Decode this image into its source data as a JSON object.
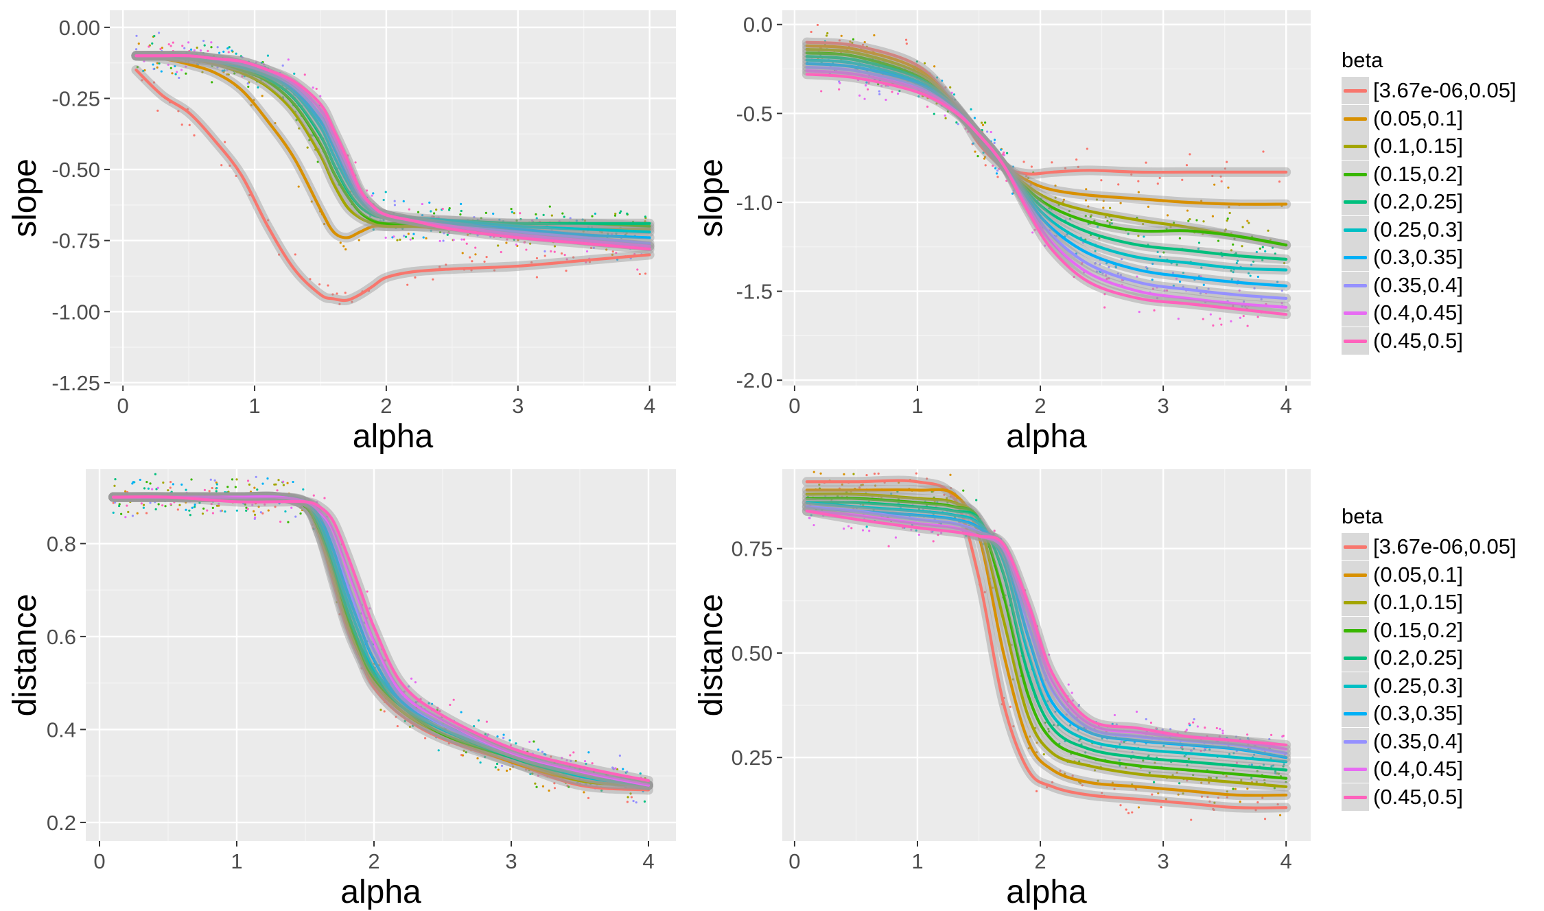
{
  "legend": {
    "title": "beta",
    "labels": [
      "[3.67e-06,0.05]",
      "(0.05,0.1]",
      "(0.1,0.15]",
      "(0.15,0.2]",
      "(0.2,0.25]",
      "(0.25,0.3]",
      "(0.3,0.35]",
      "(0.35,0.4]",
      "(0.4,0.45]",
      "(0.45,0.5]"
    ],
    "colors": [
      "#F8766D",
      "#D89000",
      "#A3A500",
      "#39B600",
      "#00BF7D",
      "#00BFC4",
      "#00B0F6",
      "#9590FF",
      "#E76BF3",
      "#FF62BC"
    ]
  },
  "chart_data": [
    {
      "type": "line",
      "xlabel": "alpha",
      "ylabel": "slope",
      "xlim": [
        -0.1,
        4.2
      ],
      "ylim": [
        -1.26,
        0.06
      ],
      "x_ticks": [
        0,
        1,
        2,
        3,
        4
      ],
      "y_ticks": [
        0.0,
        -0.25,
        -0.5,
        -0.75,
        -1.0,
        -1.25
      ],
      "y_tick_labels": [
        "0.00",
        "-0.25",
        "-0.50",
        "-0.75",
        "-1.00",
        "-1.25"
      ],
      "grid": true,
      "x": [
        0.1,
        0.3,
        0.5,
        0.7,
        0.9,
        1.1,
        1.3,
        1.5,
        1.6,
        1.7,
        1.8,
        1.9,
        2.0,
        2.2,
        2.5,
        3.0,
        3.5,
        4.0
      ],
      "series": [
        {
          "values": [
            -0.15,
            -0.24,
            -0.3,
            -0.4,
            -0.52,
            -0.7,
            -0.85,
            -0.94,
            -0.955,
            -0.96,
            -0.94,
            -0.91,
            -0.88,
            -0.86,
            -0.85,
            -0.84,
            -0.82,
            -0.8
          ]
        },
        {
          "values": [
            -0.1,
            -0.11,
            -0.13,
            -0.16,
            -0.22,
            -0.33,
            -0.46,
            -0.64,
            -0.72,
            -0.74,
            -0.72,
            -0.7,
            -0.7,
            -0.7,
            -0.71,
            -0.72,
            -0.75,
            -0.77
          ]
        },
        {
          "values": [
            -0.1,
            -0.1,
            -0.11,
            -0.13,
            -0.16,
            -0.21,
            -0.3,
            -0.45,
            -0.55,
            -0.63,
            -0.67,
            -0.69,
            -0.7,
            -0.7,
            -0.7,
            -0.7,
            -0.71,
            -0.71
          ]
        },
        {
          "values": [
            -0.1,
            -0.1,
            -0.11,
            -0.12,
            -0.15,
            -0.19,
            -0.27,
            -0.41,
            -0.51,
            -0.59,
            -0.65,
            -0.68,
            -0.69,
            -0.69,
            -0.69,
            -0.69,
            -0.69,
            -0.7
          ]
        },
        {
          "values": [
            -0.1,
            -0.1,
            -0.11,
            -0.12,
            -0.14,
            -0.18,
            -0.25,
            -0.38,
            -0.48,
            -0.57,
            -0.63,
            -0.66,
            -0.67,
            -0.68,
            -0.68,
            -0.69,
            -0.69,
            -0.69
          ]
        },
        {
          "values": [
            -0.1,
            -0.1,
            -0.1,
            -0.12,
            -0.14,
            -0.17,
            -0.23,
            -0.35,
            -0.45,
            -0.54,
            -0.61,
            -0.65,
            -0.66,
            -0.67,
            -0.68,
            -0.7,
            -0.71,
            -0.72
          ]
        },
        {
          "values": [
            -0.1,
            -0.1,
            -0.1,
            -0.11,
            -0.13,
            -0.16,
            -0.22,
            -0.33,
            -0.42,
            -0.52,
            -0.6,
            -0.64,
            -0.66,
            -0.68,
            -0.69,
            -0.71,
            -0.73,
            -0.74
          ]
        },
        {
          "values": [
            -0.1,
            -0.1,
            -0.1,
            -0.11,
            -0.13,
            -0.16,
            -0.21,
            -0.31,
            -0.4,
            -0.5,
            -0.59,
            -0.64,
            -0.66,
            -0.68,
            -0.7,
            -0.72,
            -0.74,
            -0.76
          ]
        },
        {
          "values": [
            -0.1,
            -0.1,
            -0.1,
            -0.11,
            -0.12,
            -0.15,
            -0.2,
            -0.29,
            -0.38,
            -0.48,
            -0.58,
            -0.63,
            -0.66,
            -0.68,
            -0.7,
            -0.73,
            -0.75,
            -0.77
          ]
        },
        {
          "values": [
            -0.1,
            -0.1,
            -0.1,
            -0.11,
            -0.12,
            -0.15,
            -0.19,
            -0.27,
            -0.36,
            -0.46,
            -0.57,
            -0.63,
            -0.66,
            -0.68,
            -0.71,
            -0.74,
            -0.76,
            -0.78
          ]
        }
      ]
    },
    {
      "type": "line",
      "xlabel": "alpha",
      "ylabel": "slope",
      "xlim": [
        -0.1,
        4.2
      ],
      "ylim": [
        -2.03,
        0.08
      ],
      "x_ticks": [
        0,
        1,
        2,
        3,
        4
      ],
      "y_ticks": [
        0.0,
        -0.5,
        -1.0,
        -1.5,
        -2.0
      ],
      "y_tick_labels": [
        "0.0",
        "-0.5",
        "-1.0",
        "-1.5",
        "-2.0"
      ],
      "grid": true,
      "x": [
        0.1,
        0.5,
        1.0,
        1.3,
        1.5,
        1.7,
        1.9,
        2.1,
        2.4,
        2.8,
        3.2,
        3.6,
        4.0
      ],
      "series": [
        {
          "values": [
            -0.1,
            -0.12,
            -0.23,
            -0.45,
            -0.67,
            -0.8,
            -0.84,
            -0.83,
            -0.82,
            -0.83,
            -0.83,
            -0.83,
            -0.83
          ]
        },
        {
          "values": [
            -0.12,
            -0.14,
            -0.25,
            -0.45,
            -0.64,
            -0.79,
            -0.88,
            -0.93,
            -0.96,
            -0.98,
            -1.0,
            -1.01,
            -1.01
          ]
        },
        {
          "values": [
            -0.14,
            -0.16,
            -0.27,
            -0.45,
            -0.63,
            -0.79,
            -0.91,
            -0.99,
            -1.05,
            -1.1,
            -1.14,
            -1.19,
            -1.24
          ]
        },
        {
          "values": [
            -0.16,
            -0.18,
            -0.29,
            -0.46,
            -0.63,
            -0.79,
            -0.93,
            -1.03,
            -1.11,
            -1.16,
            -1.16,
            -1.19,
            -1.24
          ]
        },
        {
          "values": [
            -0.18,
            -0.2,
            -0.3,
            -0.46,
            -0.62,
            -0.79,
            -0.95,
            -1.07,
            -1.17,
            -1.24,
            -1.27,
            -1.3,
            -1.32
          ]
        },
        {
          "values": [
            -0.2,
            -0.22,
            -0.32,
            -0.47,
            -0.62,
            -0.79,
            -0.97,
            -1.11,
            -1.23,
            -1.31,
            -1.34,
            -1.37,
            -1.38
          ]
        },
        {
          "values": [
            -0.22,
            -0.24,
            -0.33,
            -0.47,
            -0.62,
            -0.79,
            -0.99,
            -1.15,
            -1.29,
            -1.38,
            -1.42,
            -1.45,
            -1.47
          ]
        },
        {
          "values": [
            -0.24,
            -0.26,
            -0.35,
            -0.48,
            -0.62,
            -0.79,
            -1.01,
            -1.19,
            -1.35,
            -1.45,
            -1.49,
            -1.52,
            -1.54
          ]
        },
        {
          "values": [
            -0.26,
            -0.28,
            -0.36,
            -0.48,
            -0.62,
            -0.79,
            -1.03,
            -1.23,
            -1.4,
            -1.5,
            -1.54,
            -1.57,
            -1.59
          ]
        },
        {
          "values": [
            -0.28,
            -0.3,
            -0.38,
            -0.49,
            -0.62,
            -0.79,
            -1.05,
            -1.27,
            -1.45,
            -1.54,
            -1.57,
            -1.6,
            -1.63
          ]
        }
      ]
    },
    {
      "type": "line",
      "xlabel": "alpha",
      "ylabel": "distance",
      "xlim": [
        -0.1,
        4.2
      ],
      "ylim": [
        0.16,
        0.96
      ],
      "x_ticks": [
        0,
        1,
        2,
        3,
        4
      ],
      "y_ticks": [
        0.2,
        0.4,
        0.6,
        0.8
      ],
      "y_tick_labels": [
        "0.2",
        "0.4",
        "0.6",
        "0.8"
      ],
      "grid": true,
      "x": [
        0.1,
        0.5,
        1.0,
        1.3,
        1.5,
        1.6,
        1.7,
        1.8,
        1.9,
        2.0,
        2.2,
        2.5,
        3.0,
        3.5,
        4.0
      ],
      "series": [
        {
          "values": [
            0.9,
            0.9,
            0.9,
            0.9,
            0.88,
            0.82,
            0.72,
            0.62,
            0.55,
            0.49,
            0.43,
            0.38,
            0.33,
            0.28,
            0.27
          ]
        },
        {
          "values": [
            0.9,
            0.9,
            0.9,
            0.9,
            0.88,
            0.82,
            0.73,
            0.63,
            0.56,
            0.5,
            0.44,
            0.39,
            0.33,
            0.29,
            0.28
          ]
        },
        {
          "values": [
            0.9,
            0.9,
            0.9,
            0.9,
            0.88,
            0.83,
            0.74,
            0.64,
            0.56,
            0.51,
            0.44,
            0.39,
            0.34,
            0.29,
            0.28
          ]
        },
        {
          "values": [
            0.9,
            0.9,
            0.9,
            0.9,
            0.88,
            0.83,
            0.75,
            0.65,
            0.57,
            0.51,
            0.45,
            0.39,
            0.34,
            0.3,
            0.28
          ]
        },
        {
          "values": [
            0.9,
            0.9,
            0.9,
            0.9,
            0.89,
            0.84,
            0.76,
            0.66,
            0.58,
            0.52,
            0.45,
            0.4,
            0.34,
            0.3,
            0.28
          ]
        },
        {
          "values": [
            0.9,
            0.9,
            0.9,
            0.9,
            0.89,
            0.85,
            0.77,
            0.68,
            0.6,
            0.53,
            0.46,
            0.4,
            0.35,
            0.3,
            0.28
          ]
        },
        {
          "values": [
            0.9,
            0.9,
            0.9,
            0.9,
            0.89,
            0.86,
            0.79,
            0.7,
            0.62,
            0.55,
            0.46,
            0.41,
            0.35,
            0.31,
            0.28
          ]
        },
        {
          "values": [
            0.9,
            0.9,
            0.9,
            0.9,
            0.89,
            0.87,
            0.81,
            0.72,
            0.64,
            0.57,
            0.47,
            0.41,
            0.35,
            0.31,
            0.28
          ]
        },
        {
          "values": [
            0.9,
            0.9,
            0.9,
            0.9,
            0.89,
            0.87,
            0.83,
            0.75,
            0.67,
            0.59,
            0.48,
            0.42,
            0.35,
            0.31,
            0.28
          ]
        },
        {
          "values": [
            0.9,
            0.9,
            0.89,
            0.89,
            0.89,
            0.88,
            0.85,
            0.78,
            0.7,
            0.62,
            0.5,
            0.43,
            0.36,
            0.32,
            0.29
          ]
        }
      ]
    },
    {
      "type": "line",
      "xlabel": "alpha",
      "ylabel": "distance",
      "xlim": [
        -0.1,
        4.2
      ],
      "ylim": [
        0.05,
        0.94
      ],
      "x_ticks": [
        0,
        1,
        2,
        3,
        4
      ],
      "y_ticks": [
        0.25,
        0.5,
        0.75
      ],
      "y_tick_labels": [
        "0.25",
        "0.50",
        "0.75"
      ],
      "grid": true,
      "x": [
        0.1,
        0.5,
        1.0,
        1.3,
        1.5,
        1.7,
        1.9,
        2.1,
        2.4,
        2.8,
        3.2,
        3.6,
        4.0
      ],
      "series": [
        {
          "values": [
            0.91,
            0.91,
            0.91,
            0.87,
            0.68,
            0.38,
            0.22,
            0.18,
            0.16,
            0.15,
            0.14,
            0.13,
            0.13
          ]
        },
        {
          "values": [
            0.89,
            0.89,
            0.89,
            0.88,
            0.78,
            0.5,
            0.29,
            0.22,
            0.19,
            0.18,
            0.17,
            0.16,
            0.16
          ]
        },
        {
          "values": [
            0.88,
            0.88,
            0.87,
            0.86,
            0.81,
            0.58,
            0.35,
            0.26,
            0.23,
            0.21,
            0.2,
            0.19,
            0.18
          ]
        },
        {
          "values": [
            0.87,
            0.87,
            0.86,
            0.85,
            0.82,
            0.64,
            0.4,
            0.29,
            0.25,
            0.23,
            0.22,
            0.21,
            0.2
          ]
        },
        {
          "values": [
            0.86,
            0.86,
            0.85,
            0.84,
            0.82,
            0.69,
            0.45,
            0.32,
            0.27,
            0.25,
            0.24,
            0.23,
            0.22
          ]
        },
        {
          "values": [
            0.86,
            0.85,
            0.84,
            0.83,
            0.81,
            0.72,
            0.5,
            0.35,
            0.29,
            0.27,
            0.26,
            0.25,
            0.24
          ]
        },
        {
          "values": [
            0.85,
            0.84,
            0.83,
            0.82,
            0.8,
            0.74,
            0.54,
            0.38,
            0.31,
            0.29,
            0.28,
            0.27,
            0.25
          ]
        },
        {
          "values": [
            0.85,
            0.84,
            0.82,
            0.81,
            0.79,
            0.75,
            0.57,
            0.41,
            0.32,
            0.3,
            0.29,
            0.28,
            0.26
          ]
        },
        {
          "values": [
            0.84,
            0.83,
            0.81,
            0.8,
            0.78,
            0.75,
            0.6,
            0.43,
            0.33,
            0.31,
            0.3,
            0.29,
            0.27
          ]
        },
        {
          "values": [
            0.84,
            0.82,
            0.8,
            0.79,
            0.78,
            0.76,
            0.62,
            0.45,
            0.34,
            0.32,
            0.3,
            0.29,
            0.28
          ]
        }
      ]
    }
  ]
}
